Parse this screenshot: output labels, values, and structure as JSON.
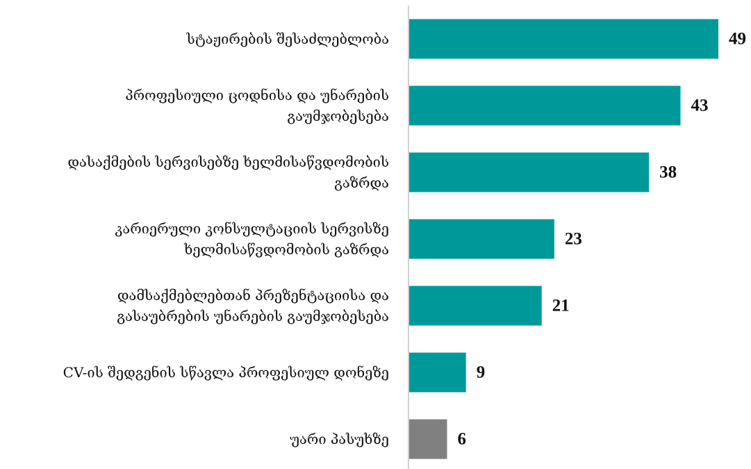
{
  "chart_data": {
    "type": "bar",
    "orientation": "horizontal",
    "title": "",
    "xlabel": "",
    "ylabel": "",
    "xlim": [
      0,
      49
    ],
    "grid": false,
    "legend": "none",
    "categories": [
      "სტაჟირების შესაძლებლობა",
      "პროფესიული ცოდნისა და უნარების გაუმჯობესება",
      "დასაქმების სერვისებზე ხელმისაწვდომობის გაზრდა",
      "კარიერული კონსულტაციის სერვისზე ხელმისაწვდომობის გაზრდა",
      "დამსაქმებლებთან პრეზენტაციისა და გასაუბრების უნარების გაუმჯობესება",
      "CV-ის შედგენის სწავლა პროფესიულ დონეზე",
      "უარი პასუხზე"
    ],
    "category_lines": [
      [
        "სტაჟირების შესაძლებლობა"
      ],
      [
        "პროფესიული ცოდნისა და უნარების",
        "გაუმჯობესება"
      ],
      [
        "დასაქმების სერვისებზე ხელმისაწვდომობის",
        "გაზრდა"
      ],
      [
        "კარიერული კონსულტაციის სერვისზე",
        "ხელმისაწვდომობის გაზრდა"
      ],
      [
        "დამსაქმებლებთან პრეზენტაციისა და",
        "გასაუბრების უნარების გაუმჯობესება"
      ],
      [
        "CV-ის შედგენის სწავლა პროფესიულ დონეზე"
      ],
      [
        "უარი პასუხზე"
      ]
    ],
    "values": [
      49,
      43,
      38,
      23,
      21,
      9,
      6
    ],
    "bar_colors": [
      "#009999",
      "#009999",
      "#009999",
      "#009999",
      "#009999",
      "#009999",
      "#808080"
    ],
    "axis_color": "#d0d0d0"
  }
}
